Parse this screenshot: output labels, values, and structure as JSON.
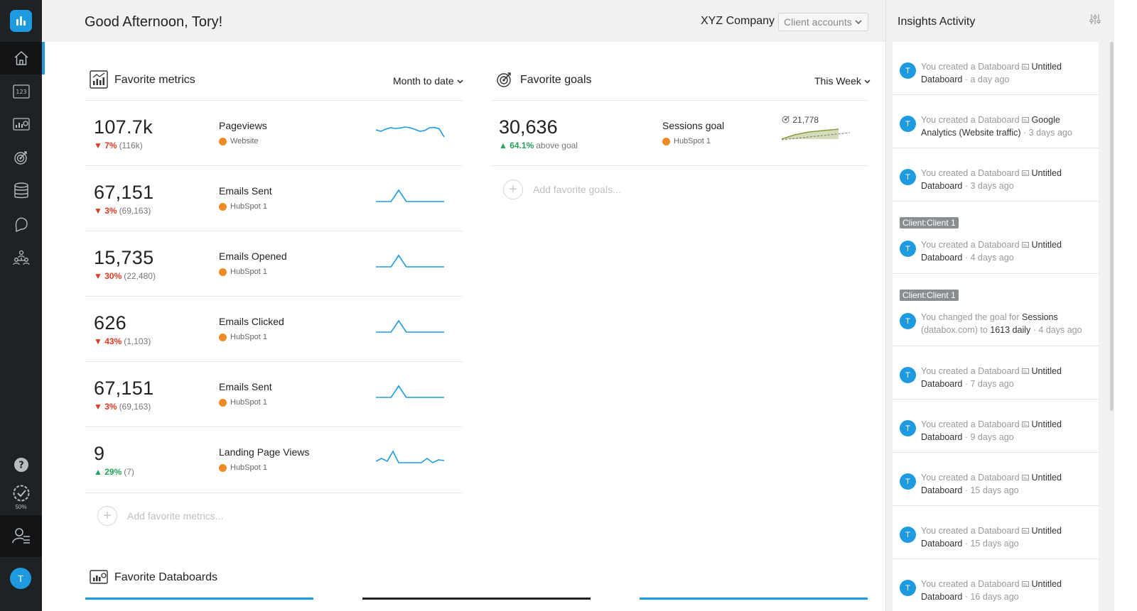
{
  "header": {
    "greeting": "Good Afternoon, Tory!",
    "company": "XYZ Company",
    "client_select": "Client accounts"
  },
  "nav": {
    "icons": [
      "logo-icon",
      "home-icon",
      "metrics-icon",
      "databoards-icon",
      "goals-icon",
      "datasources-icon",
      "alerts-icon",
      "team-icon",
      "help-icon",
      "progress-icon",
      "user-settings-icon"
    ],
    "progress": "50%",
    "user_initial": "T"
  },
  "metrics": {
    "title": "Favorite metrics",
    "period": "Month to date",
    "rows": [
      {
        "value": "107.7k",
        "change": "7%",
        "direction": "down",
        "previous": "(116k)",
        "name": "Pageviews",
        "source": "Website",
        "spark": [
          0.45,
          0.55,
          0.4,
          0.3,
          0.35,
          0.32,
          0.25,
          0.3,
          0.42,
          0.55,
          0.5,
          0.3,
          0.28,
          0.38,
          0.95
        ]
      },
      {
        "value": "67,151",
        "change": "3%",
        "direction": "down",
        "previous": "(69,163)",
        "name": "Emails Sent",
        "source": "HubSpot 1",
        "spark": [
          0.9,
          0.9,
          0.9,
          0.1,
          0.9,
          0.9,
          0.9,
          0.9,
          0.9,
          0.9
        ]
      },
      {
        "value": "15,735",
        "change": "30%",
        "direction": "down",
        "previous": "(22,480)",
        "name": "Emails Opened",
        "source": "HubSpot 1",
        "spark": [
          0.9,
          0.9,
          0.9,
          0.1,
          0.9,
          0.9,
          0.9,
          0.9,
          0.9,
          0.9
        ]
      },
      {
        "value": "626",
        "change": "43%",
        "direction": "down",
        "previous": "(1,103)",
        "name": "Emails Clicked",
        "source": "HubSpot 1",
        "spark": [
          0.9,
          0.9,
          0.9,
          0.1,
          0.9,
          0.9,
          0.9,
          0.9,
          0.9,
          0.9
        ]
      },
      {
        "value": "67,151",
        "change": "3%",
        "direction": "down",
        "previous": "(69,163)",
        "name": "Emails Sent",
        "source": "HubSpot 1",
        "spark": [
          0.9,
          0.9,
          0.9,
          0.1,
          0.9,
          0.9,
          0.9,
          0.9,
          0.9,
          0.9
        ]
      },
      {
        "value": "9",
        "change": "29%",
        "direction": "up",
        "previous": "(7)",
        "name": "Landing Page Views",
        "source": "HubSpot 1",
        "spark": [
          0.8,
          0.6,
          0.8,
          0.1,
          0.9,
          0.9,
          0.9,
          0.9,
          0.9,
          0.6,
          0.9,
          0.7,
          0.75
        ]
      }
    ],
    "add_label": "Add favorite metrics..."
  },
  "goals": {
    "title": "Favorite goals",
    "period": "This Week",
    "rows": [
      {
        "value": "30,636",
        "change": "64.1%",
        "note": "above goal",
        "name": "Sessions goal",
        "source": "HubSpot 1",
        "target": "21,778"
      }
    ],
    "add_label": "Add favorite goals..."
  },
  "databoards": {
    "title": "Favorite Databoards"
  },
  "activity": {
    "title": "Insights Activity",
    "items": [
      {
        "tag": "",
        "prefix": "You created a Databoard",
        "object": "Untitled Databoard",
        "suffix": "",
        "time": "a day ago"
      },
      {
        "tag": "",
        "prefix": "You created a Databoard",
        "object": "Google Analytics (Website traffic)",
        "suffix": "",
        "time": "3 days ago"
      },
      {
        "tag": "",
        "prefix": "You created a Databoard",
        "object": "Untitled Databoard",
        "suffix": "",
        "time": "3 days ago"
      },
      {
        "tag": "Client:Client 1",
        "prefix": "You created a Databoard",
        "object": "Untitled Databoard",
        "suffix": "",
        "time": "4 days ago"
      },
      {
        "tag": "Client:Client 1",
        "prefix": "You changed the goal for",
        "object": "Sessions",
        "mid": "(databox.com) to",
        "object2": "1613 daily",
        "time": "4 days ago"
      },
      {
        "tag": "",
        "prefix": "You created a Databoard",
        "object": "Untitled Databoard",
        "suffix": "",
        "time": "7 days ago"
      },
      {
        "tag": "",
        "prefix": "You created a Databoard",
        "object": "Untitled Databoard",
        "suffix": "",
        "time": "9 days ago"
      },
      {
        "tag": "",
        "prefix": "You created a Databoard",
        "object": "Untitled Databoard",
        "suffix": "",
        "time": "15 days ago"
      },
      {
        "tag": "",
        "prefix": "You created a Databoard",
        "object": "Untitled Databoard",
        "suffix": "",
        "time": "15 days ago"
      },
      {
        "tag": "",
        "prefix": "You created a Databoard",
        "object": "Untitled Databoard",
        "suffix": "",
        "time": "16 days ago"
      }
    ],
    "avatar_initial": "T"
  },
  "colors": {
    "accent": "#1e9be0",
    "down": "#e0391f",
    "up": "#22a35a",
    "hubspot": "#f08a24",
    "nav_bg": "#1f2224"
  }
}
